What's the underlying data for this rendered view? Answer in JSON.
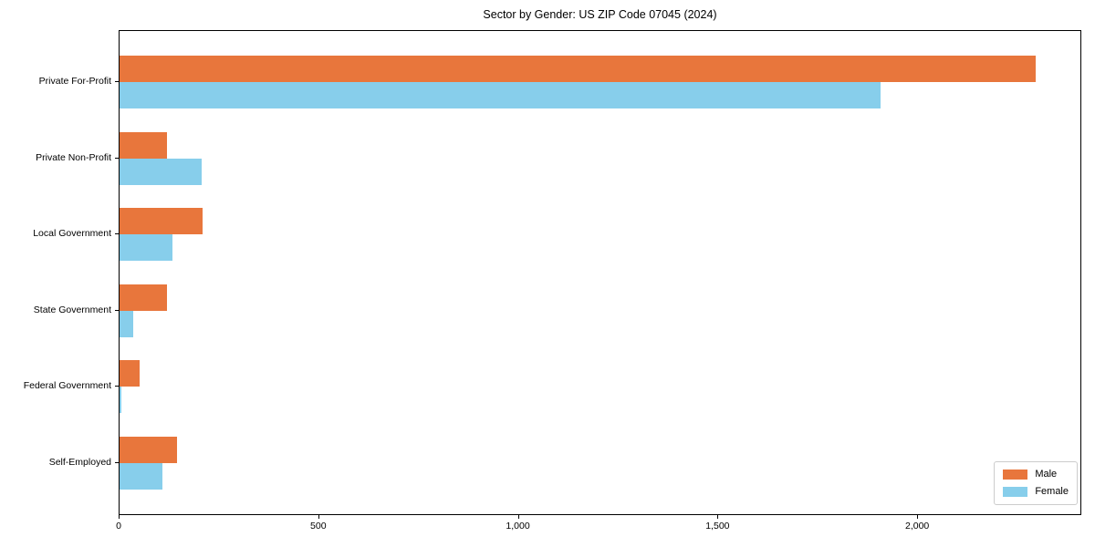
{
  "chart_data": {
    "type": "bar",
    "orientation": "horizontal",
    "title": "Sector by Gender: US ZIP Code 07045 (2024)",
    "categories": [
      "Private For-Profit",
      "Private Non-Profit",
      "Local Government",
      "State Government",
      "Federal Government",
      "Self-Employed"
    ],
    "series": [
      {
        "name": "Male",
        "color": "#E8763C",
        "values": [
          2295,
          119,
          208,
          119,
          50,
          144
        ]
      },
      {
        "name": "Female",
        "color": "#87CEEB",
        "values": [
          1905,
          206,
          133,
          34,
          5,
          107
        ]
      }
    ],
    "xlim": [
      0,
      2411
    ],
    "xticks": [
      0,
      500,
      1000,
      1500,
      2000
    ],
    "xtick_labels": [
      "0",
      "500",
      "1,000",
      "1,500",
      "2,000"
    ],
    "legend_position": "lower right",
    "grid": false,
    "background_color": "#ffffff",
    "axis_color": "#000000"
  }
}
